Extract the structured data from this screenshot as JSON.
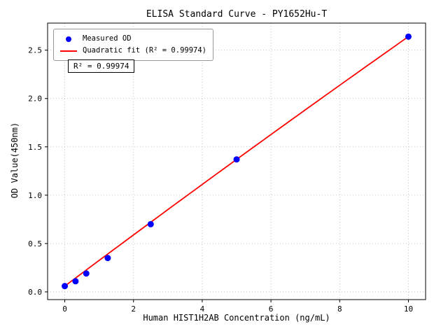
{
  "chart_data": {
    "type": "scatter",
    "title": "ELISA Standard Curve - PY1652Hu-T",
    "xlabel": "Human HIST1H2AB Concentration (ng/mL)",
    "ylabel": "OD Value(450nm)",
    "xlim": [
      -0.5,
      10.5
    ],
    "ylim": [
      -0.08,
      2.78
    ],
    "x_ticks": [
      0,
      2,
      4,
      6,
      8,
      10
    ],
    "y_ticks": [
      0.0,
      0.5,
      1.0,
      1.5,
      2.0,
      2.5
    ],
    "grid": "dotted",
    "series": [
      {
        "name": "Measured OD",
        "type": "scatter",
        "color": "#0000ff",
        "x": [
          0,
          0.3125,
          0.625,
          1.25,
          2.5,
          5,
          10
        ],
        "y": [
          0.06,
          0.11,
          0.19,
          0.35,
          0.7,
          1.37,
          2.64
        ]
      },
      {
        "name": "Quadratic fit (R² = 0.99974)",
        "type": "line",
        "color": "#ff0000",
        "fit": {
          "kind": "quadratic",
          "a": -0.0008,
          "b": 0.266,
          "c": 0.06,
          "x_start": 0,
          "x_end": 10
        }
      }
    ],
    "legend": {
      "position": "upper left",
      "entries": [
        "Measured OD",
        "Quadratic fit (R² = 0.99974)"
      ]
    },
    "annotation": "R² = 0.99974",
    "r_squared": 0.99974
  }
}
